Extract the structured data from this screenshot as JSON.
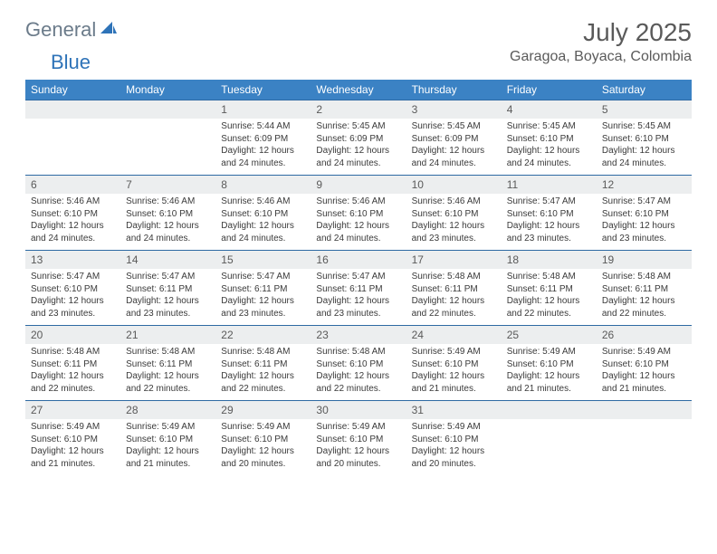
{
  "logo": {
    "general": "General",
    "blue": "Blue",
    "icon_fill": "#2e73b8"
  },
  "title": "July 2025",
  "location": "Garagoa, Boyaca, Colombia",
  "colors": {
    "header_bg": "#3b82c4",
    "header_text": "#ffffff",
    "daynum_bg": "#eceeef",
    "daynum_text": "#5a5a5a",
    "border": "#2e6aa3",
    "body_text": "#3a3a3a",
    "title_text": "#5a5a5a"
  },
  "weekdays": [
    "Sunday",
    "Monday",
    "Tuesday",
    "Wednesday",
    "Thursday",
    "Friday",
    "Saturday"
  ],
  "weeks": [
    [
      null,
      null,
      {
        "d": "1",
        "sr": "5:44 AM",
        "ss": "6:09 PM",
        "dl": "12 hours and 24 minutes."
      },
      {
        "d": "2",
        "sr": "5:45 AM",
        "ss": "6:09 PM",
        "dl": "12 hours and 24 minutes."
      },
      {
        "d": "3",
        "sr": "5:45 AM",
        "ss": "6:09 PM",
        "dl": "12 hours and 24 minutes."
      },
      {
        "d": "4",
        "sr": "5:45 AM",
        "ss": "6:10 PM",
        "dl": "12 hours and 24 minutes."
      },
      {
        "d": "5",
        "sr": "5:45 AM",
        "ss": "6:10 PM",
        "dl": "12 hours and 24 minutes."
      }
    ],
    [
      {
        "d": "6",
        "sr": "5:46 AM",
        "ss": "6:10 PM",
        "dl": "12 hours and 24 minutes."
      },
      {
        "d": "7",
        "sr": "5:46 AM",
        "ss": "6:10 PM",
        "dl": "12 hours and 24 minutes."
      },
      {
        "d": "8",
        "sr": "5:46 AM",
        "ss": "6:10 PM",
        "dl": "12 hours and 24 minutes."
      },
      {
        "d": "9",
        "sr": "5:46 AM",
        "ss": "6:10 PM",
        "dl": "12 hours and 24 minutes."
      },
      {
        "d": "10",
        "sr": "5:46 AM",
        "ss": "6:10 PM",
        "dl": "12 hours and 23 minutes."
      },
      {
        "d": "11",
        "sr": "5:47 AM",
        "ss": "6:10 PM",
        "dl": "12 hours and 23 minutes."
      },
      {
        "d": "12",
        "sr": "5:47 AM",
        "ss": "6:10 PM",
        "dl": "12 hours and 23 minutes."
      }
    ],
    [
      {
        "d": "13",
        "sr": "5:47 AM",
        "ss": "6:10 PM",
        "dl": "12 hours and 23 minutes."
      },
      {
        "d": "14",
        "sr": "5:47 AM",
        "ss": "6:11 PM",
        "dl": "12 hours and 23 minutes."
      },
      {
        "d": "15",
        "sr": "5:47 AM",
        "ss": "6:11 PM",
        "dl": "12 hours and 23 minutes."
      },
      {
        "d": "16",
        "sr": "5:47 AM",
        "ss": "6:11 PM",
        "dl": "12 hours and 23 minutes."
      },
      {
        "d": "17",
        "sr": "5:48 AM",
        "ss": "6:11 PM",
        "dl": "12 hours and 22 minutes."
      },
      {
        "d": "18",
        "sr": "5:48 AM",
        "ss": "6:11 PM",
        "dl": "12 hours and 22 minutes."
      },
      {
        "d": "19",
        "sr": "5:48 AM",
        "ss": "6:11 PM",
        "dl": "12 hours and 22 minutes."
      }
    ],
    [
      {
        "d": "20",
        "sr": "5:48 AM",
        "ss": "6:11 PM",
        "dl": "12 hours and 22 minutes."
      },
      {
        "d": "21",
        "sr": "5:48 AM",
        "ss": "6:11 PM",
        "dl": "12 hours and 22 minutes."
      },
      {
        "d": "22",
        "sr": "5:48 AM",
        "ss": "6:11 PM",
        "dl": "12 hours and 22 minutes."
      },
      {
        "d": "23",
        "sr": "5:48 AM",
        "ss": "6:10 PM",
        "dl": "12 hours and 22 minutes."
      },
      {
        "d": "24",
        "sr": "5:49 AM",
        "ss": "6:10 PM",
        "dl": "12 hours and 21 minutes."
      },
      {
        "d": "25",
        "sr": "5:49 AM",
        "ss": "6:10 PM",
        "dl": "12 hours and 21 minutes."
      },
      {
        "d": "26",
        "sr": "5:49 AM",
        "ss": "6:10 PM",
        "dl": "12 hours and 21 minutes."
      }
    ],
    [
      {
        "d": "27",
        "sr": "5:49 AM",
        "ss": "6:10 PM",
        "dl": "12 hours and 21 minutes."
      },
      {
        "d": "28",
        "sr": "5:49 AM",
        "ss": "6:10 PM",
        "dl": "12 hours and 21 minutes."
      },
      {
        "d": "29",
        "sr": "5:49 AM",
        "ss": "6:10 PM",
        "dl": "12 hours and 20 minutes."
      },
      {
        "d": "30",
        "sr": "5:49 AM",
        "ss": "6:10 PM",
        "dl": "12 hours and 20 minutes."
      },
      {
        "d": "31",
        "sr": "5:49 AM",
        "ss": "6:10 PM",
        "dl": "12 hours and 20 minutes."
      },
      null,
      null
    ]
  ],
  "labels": {
    "sunrise": "Sunrise:",
    "sunset": "Sunset:",
    "daylight": "Daylight:"
  }
}
